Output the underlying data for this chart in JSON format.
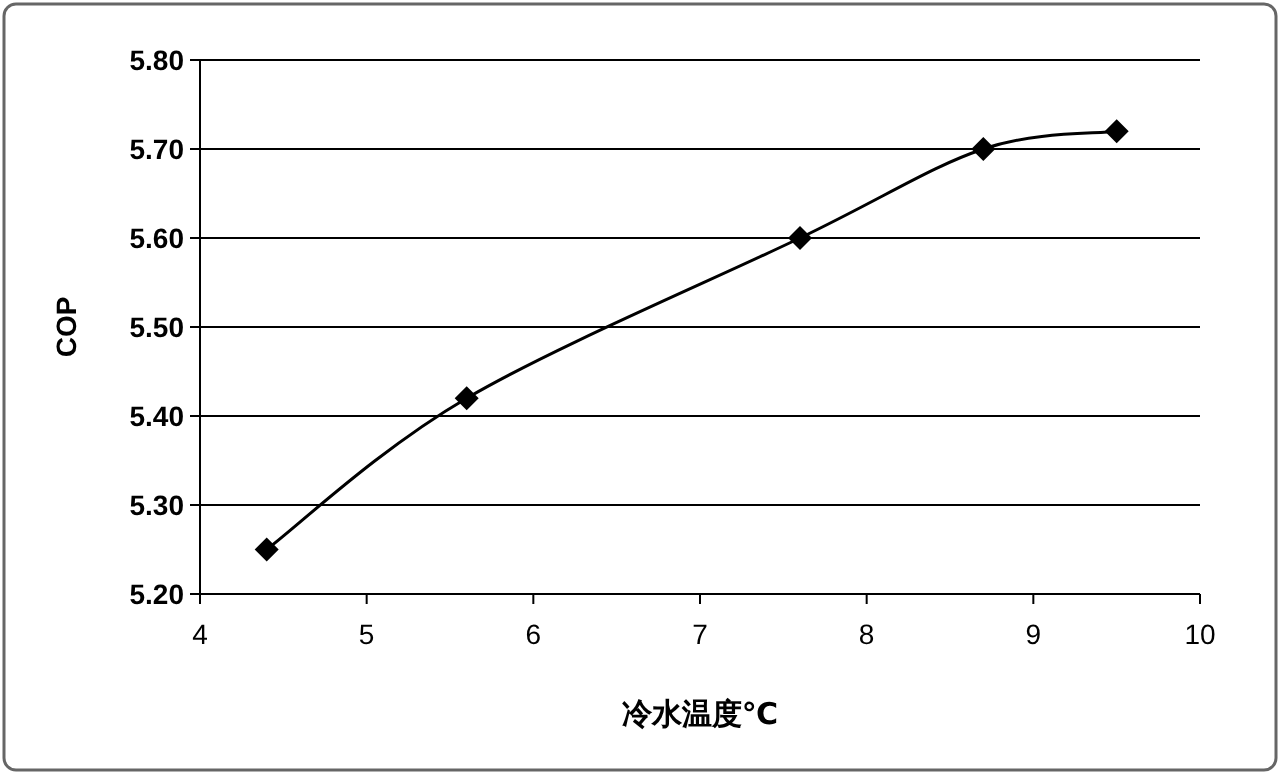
{
  "chart_data": {
    "type": "line",
    "xlabel": "冷水温度℃",
    "ylabel": "COP",
    "x": [
      4.4,
      5.6,
      7.6,
      8.7,
      9.5
    ],
    "values": [
      5.25,
      5.42,
      5.6,
      5.7,
      5.72
    ],
    "color": "#000000",
    "marker": "diamond",
    "line_style": "solid",
    "grid": "y",
    "xlim": [
      4,
      10
    ],
    "xticks": [
      4,
      5,
      6,
      7,
      8,
      9,
      10
    ],
    "ylim": [
      5.2,
      5.8
    ],
    "yticks": [
      {
        "value": 5.2,
        "label": "5.20"
      },
      {
        "value": 5.3,
        "label": "5.30"
      },
      {
        "value": 5.4,
        "label": "5.40"
      },
      {
        "value": 5.5,
        "label": "5.50"
      },
      {
        "value": 5.6,
        "label": "5.60"
      },
      {
        "value": 5.7,
        "label": "5.70"
      },
      {
        "value": 5.8,
        "label": "5.80"
      }
    ]
  }
}
